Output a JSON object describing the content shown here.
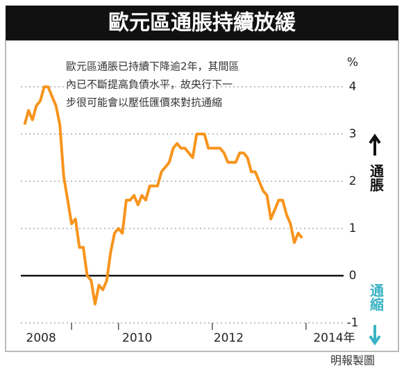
{
  "chart_data": {
    "type": "line",
    "title": "歐元區通脹持續放緩",
    "annotation": [
      "歐元區通脹已持續下降逾2年，其間區",
      "內已不斷提高負債水平，故央行下一",
      "步很可能會以壓低匯價來對抗通縮"
    ],
    "y_unit": "%",
    "up_label": "通脹",
    "down_label": "通縮",
    "credit": "明報製圖",
    "x": [
      2008.0,
      2008.083,
      2008.167,
      2008.25,
      2008.333,
      2008.417,
      2008.5,
      2008.583,
      2008.667,
      2008.75,
      2008.833,
      2008.917,
      2009.0,
      2009.083,
      2009.167,
      2009.25,
      2009.333,
      2009.417,
      2009.5,
      2009.583,
      2009.667,
      2009.75,
      2009.833,
      2009.917,
      2010.0,
      2010.083,
      2010.167,
      2010.25,
      2010.333,
      2010.417,
      2010.5,
      2010.583,
      2010.667,
      2010.75,
      2010.833,
      2010.917,
      2011.0,
      2011.083,
      2011.167,
      2011.25,
      2011.333,
      2011.417,
      2011.5,
      2011.583,
      2011.667,
      2011.75,
      2011.833,
      2011.917,
      2012.0,
      2012.083,
      2012.167,
      2012.25,
      2012.333,
      2012.417,
      2012.5,
      2012.583,
      2012.667,
      2012.75,
      2012.833,
      2012.917,
      2013.0,
      2013.083,
      2013.167,
      2013.25,
      2013.333,
      2013.417,
      2013.5,
      2013.583,
      2013.667,
      2013.75,
      2013.833,
      2013.917
    ],
    "series": [
      {
        "color": "#f7941d",
        "values": [
          3.2,
          3.5,
          3.3,
          3.6,
          3.7,
          4.0,
          4.0,
          3.8,
          3.6,
          3.2,
          2.1,
          1.6,
          1.1,
          1.2,
          0.6,
          0.6,
          0.0,
          -0.1,
          -0.6,
          -0.2,
          -0.3,
          -0.1,
          0.5,
          0.9,
          1.0,
          0.9,
          1.6,
          1.6,
          1.7,
          1.5,
          1.7,
          1.6,
          1.9,
          1.9,
          1.9,
          2.2,
          2.3,
          2.4,
          2.7,
          2.8,
          2.7,
          2.7,
          2.6,
          2.5,
          3.0,
          3.0,
          3.0,
          2.7,
          2.7,
          2.7,
          2.7,
          2.6,
          2.4,
          2.4,
          2.4,
          2.6,
          2.6,
          2.5,
          2.2,
          2.2,
          2.0,
          1.8,
          1.7,
          1.2,
          1.4,
          1.6,
          1.6,
          1.3,
          1.1,
          0.7,
          0.9,
          0.8
        ]
      }
    ],
    "xlim": [
      2007.8,
      2015.2
    ],
    "xticks": [
      {
        "value": 2008.35,
        "label": "2008"
      },
      {
        "value": 2010.4,
        "label": "2010"
      },
      {
        "value": 2012.35,
        "label": "2012"
      },
      {
        "value": 2014.6,
        "label": "2014年"
      }
    ],
    "xtick_marks": [
      2009,
      2010,
      2012,
      2014
    ],
    "ylim": [
      -1,
      4
    ],
    "yticks": [
      4,
      3,
      2,
      1,
      0,
      -1
    ],
    "grid": true
  }
}
